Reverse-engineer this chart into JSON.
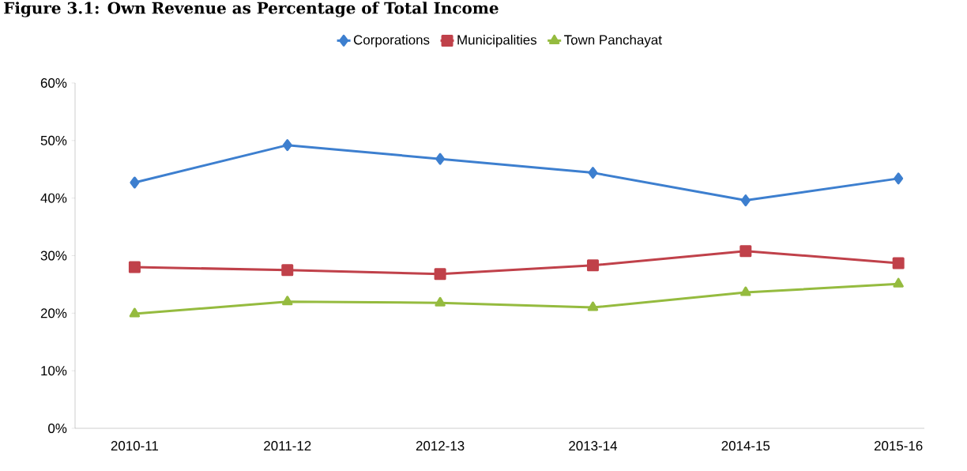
{
  "chart_data": {
    "type": "line",
    "title": "Figure 3.1: Own Revenue as Percentage of Total Income",
    "categories": [
      "2010-11",
      "2011-12",
      "2012-13",
      "2013-14",
      "2014-15",
      "2015-16"
    ],
    "series": [
      {
        "name": "Corporations",
        "color": "#3d7fcf",
        "marker": "diamond",
        "values": [
          42.7,
          49.2,
          46.8,
          44.4,
          39.6,
          43.4
        ]
      },
      {
        "name": "Municipalities",
        "color": "#c0414a",
        "marker": "square",
        "values": [
          28.0,
          27.5,
          26.8,
          28.3,
          30.8,
          28.7
        ]
      },
      {
        "name": "Town Panchayat",
        "color": "#95bb3f",
        "marker": "triangle",
        "values": [
          19.9,
          22.0,
          21.8,
          21.0,
          23.6,
          25.1
        ]
      }
    ],
    "ylim": [
      0,
      60
    ],
    "yticks": [
      {
        "value": 0,
        "label": "0%"
      },
      {
        "value": 10,
        "label": "10%"
      },
      {
        "value": 20,
        "label": "20%"
      },
      {
        "value": 30,
        "label": "30%"
      },
      {
        "value": 40,
        "label": "40%"
      },
      {
        "value": 50,
        "label": "50%"
      },
      {
        "value": 60,
        "label": "60%"
      }
    ],
    "grid": false,
    "legend": "top",
    "line_style": "solid"
  }
}
